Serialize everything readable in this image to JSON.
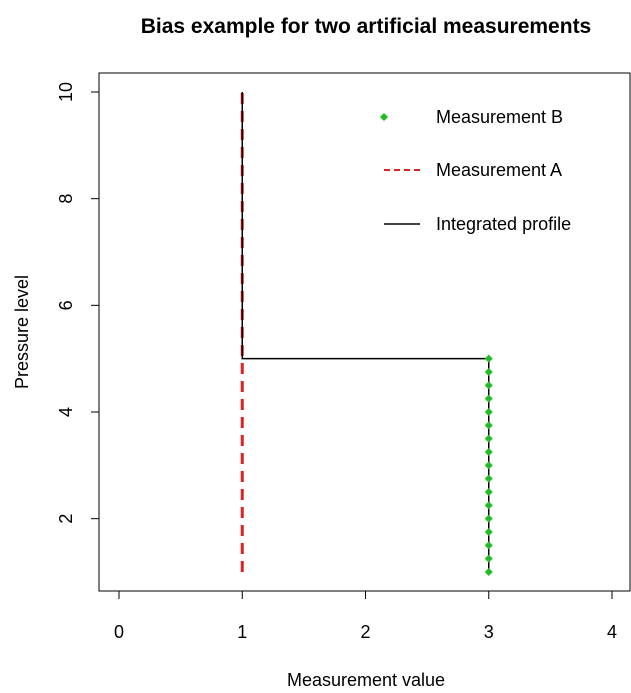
{
  "chart_data": {
    "type": "line",
    "title": "Bias example for two artificial measurements",
    "xlabel": "Measurement value",
    "ylabel": "Pressure level",
    "xlim": [
      0,
      4
    ],
    "ylim": [
      1,
      10
    ],
    "x_ticks": [
      0,
      1,
      2,
      3,
      4
    ],
    "y_ticks": [
      2,
      4,
      6,
      8,
      10
    ],
    "grid": false,
    "legend_position": "top-right",
    "series": [
      {
        "name": "Measurement B",
        "style": "points",
        "color": "#22bb22",
        "x": [
          3,
          3,
          3,
          3,
          3,
          3,
          3,
          3,
          3,
          3,
          3,
          3,
          3,
          3,
          3,
          3,
          3
        ],
        "y": [
          1,
          1.25,
          1.5,
          1.75,
          2,
          2.25,
          2.5,
          2.75,
          3,
          3.25,
          3.5,
          3.75,
          4,
          4.25,
          4.5,
          4.75,
          5
        ]
      },
      {
        "name": "Measurement A",
        "style": "dashed",
        "color": "#dd2222",
        "x": [
          1,
          1
        ],
        "y": [
          1,
          10
        ]
      },
      {
        "name": "Integrated profile",
        "style": "solid",
        "color": "#000000",
        "x": [
          3,
          3,
          1,
          1
        ],
        "y": [
          1,
          5,
          5,
          10
        ]
      }
    ],
    "legend_order": [
      "Measurement B",
      "Measurement A",
      "Integrated profile"
    ]
  }
}
